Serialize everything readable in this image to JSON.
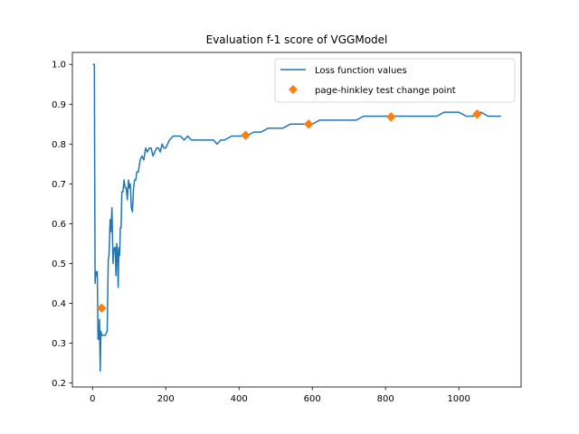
{
  "chart_data": {
    "type": "line",
    "title": "Evaluation f-1 score of VGGModel",
    "xlabel": "",
    "ylabel": "",
    "xlim": [
      -55,
      1170
    ],
    "ylim": [
      0.19,
      1.03
    ],
    "xticks": [
      0,
      200,
      400,
      600,
      800,
      1000
    ],
    "yticks": [
      0.2,
      0.3,
      0.4,
      0.5,
      0.6,
      0.7,
      0.8,
      0.9,
      1.0
    ],
    "xtick_labels": [
      "0",
      "200",
      "400",
      "600",
      "800",
      "1000"
    ],
    "ytick_labels": [
      "0.2",
      "0.3",
      "0.4",
      "0.5",
      "0.6",
      "0.7",
      "0.8",
      "0.9",
      "1.0"
    ],
    "grid": false,
    "legend_position": "top-right",
    "series": [
      {
        "name": "Loss function values",
        "color": "#1f77b4",
        "marker": "line",
        "x": [
          1,
          3,
          5,
          7,
          9,
          11,
          13,
          15,
          17,
          19,
          21,
          23,
          25,
          27,
          30,
          35,
          40,
          43,
          45,
          48,
          50,
          53,
          56,
          58,
          60,
          62,
          64,
          66,
          68,
          70,
          72,
          74,
          76,
          78,
          80,
          83,
          86,
          89,
          92,
          95,
          98,
          100,
          103,
          106,
          109,
          112,
          115,
          118,
          121,
          125,
          130,
          135,
          140,
          145,
          150,
          155,
          160,
          165,
          170,
          175,
          180,
          185,
          190,
          195,
          200,
          210,
          220,
          230,
          240,
          250,
          260,
          270,
          280,
          290,
          300,
          310,
          320,
          330,
          340,
          350,
          360,
          380,
          400,
          420,
          440,
          460,
          480,
          500,
          520,
          540,
          560,
          580,
          600,
          620,
          640,
          660,
          680,
          700,
          720,
          740,
          760,
          780,
          800,
          820,
          840,
          860,
          880,
          900,
          920,
          940,
          960,
          980,
          1000,
          1020,
          1040,
          1060,
          1080,
          1100,
          1115
        ],
        "y": [
          1.0,
          1.0,
          1.0,
          0.45,
          0.48,
          0.47,
          0.48,
          0.31,
          0.31,
          0.36,
          0.23,
          0.33,
          0.32,
          0.32,
          0.32,
          0.32,
          0.33,
          0.51,
          0.52,
          0.61,
          0.58,
          0.64,
          0.5,
          0.53,
          0.54,
          0.54,
          0.47,
          0.55,
          0.53,
          0.44,
          0.54,
          0.52,
          0.59,
          0.59,
          0.68,
          0.68,
          0.71,
          0.69,
          0.69,
          0.66,
          0.71,
          0.69,
          0.7,
          0.64,
          0.63,
          0.69,
          0.71,
          0.71,
          0.73,
          0.73,
          0.76,
          0.77,
          0.76,
          0.79,
          0.78,
          0.79,
          0.79,
          0.77,
          0.78,
          0.79,
          0.79,
          0.78,
          0.8,
          0.79,
          0.79,
          0.81,
          0.82,
          0.82,
          0.82,
          0.81,
          0.82,
          0.81,
          0.81,
          0.81,
          0.81,
          0.81,
          0.81,
          0.81,
          0.8,
          0.81,
          0.81,
          0.82,
          0.82,
          0.82,
          0.83,
          0.83,
          0.84,
          0.84,
          0.84,
          0.85,
          0.85,
          0.85,
          0.85,
          0.86,
          0.86,
          0.86,
          0.86,
          0.86,
          0.86,
          0.87,
          0.87,
          0.87,
          0.87,
          0.87,
          0.87,
          0.87,
          0.87,
          0.87,
          0.87,
          0.87,
          0.88,
          0.88,
          0.88,
          0.87,
          0.87,
          0.88,
          0.87,
          0.87,
          0.87
        ]
      },
      {
        "name": "page-hinkley test change point",
        "color": "#ff7f0e",
        "marker": "diamond",
        "x": [
          25,
          418,
          590,
          815,
          1050
        ],
        "y": [
          0.388,
          0.822,
          0.85,
          0.868,
          0.875
        ]
      }
    ]
  }
}
